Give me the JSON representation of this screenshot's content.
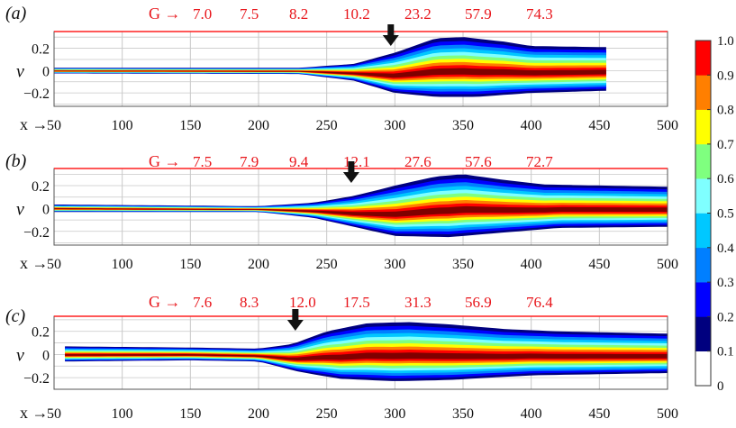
{
  "colors": {
    "g_text": "#e8151b",
    "g_line": "#ff2020",
    "grid": "#c8c8c8",
    "frame": "#555555",
    "arrow": "#111111",
    "text": "#111111"
  },
  "colormap": [
    "#ffffff",
    "#00007f",
    "#0000ff",
    "#007fff",
    "#00c8ff",
    "#7fffff",
    "#7fff7f",
    "#ffff00",
    "#ff7f00",
    "#ff0000",
    "#7f0000"
  ],
  "chart_data": [
    {
      "type": "heatmap",
      "panel_label": "(a)",
      "g_prefix": "G →",
      "g_values": [
        "7.0",
        "7.5",
        "8.2",
        "10.2",
        "23.2",
        "57.9",
        "74.3"
      ],
      "g_positions_x": [
        132,
        184,
        235,
        300,
        365,
        430,
        495
      ],
      "x_prefix": "x →",
      "x_ticks": [
        "50",
        "100",
        "150",
        "200",
        "250",
        "300",
        "350",
        "400",
        "450",
        "500"
      ],
      "xlim": [
        50,
        500
      ],
      "ylabel": "v",
      "y_ticks": [
        "0.2",
        "0",
        "−0.2"
      ],
      "y_tick_values": [
        0.2,
        0,
        -0.2
      ],
      "ylim": [
        -0.32,
        0.35
      ],
      "data_x_end": 455,
      "arrow_x": 297,
      "upper_boundary": [
        [
          50,
          0.025
        ],
        [
          230,
          0.025
        ],
        [
          270,
          0.06
        ],
        [
          300,
          0.16
        ],
        [
          330,
          0.29
        ],
        [
          350,
          0.3
        ],
        [
          380,
          0.26
        ],
        [
          400,
          0.22
        ],
        [
          455,
          0.21
        ]
      ],
      "lower_boundary": [
        [
          50,
          -0.025
        ],
        [
          230,
          -0.03
        ],
        [
          270,
          -0.09
        ],
        [
          300,
          -0.2
        ],
        [
          330,
          -0.235
        ],
        [
          360,
          -0.235
        ],
        [
          400,
          -0.2
        ],
        [
          455,
          -0.18
        ]
      ]
    },
    {
      "type": "heatmap",
      "panel_label": "(b)",
      "g_prefix": "G →",
      "g_values": [
        "7.5",
        "7.9",
        "9.4",
        "12.1",
        "27.6",
        "57.6",
        "72.7"
      ],
      "g_positions_x": [
        132,
        184,
        235,
        300,
        365,
        430,
        495
      ],
      "x_prefix": "x →",
      "x_ticks": [
        "50",
        "100",
        "150",
        "200",
        "250",
        "300",
        "350",
        "400",
        "450",
        "500"
      ],
      "xlim": [
        50,
        500
      ],
      "ylabel": "v",
      "y_ticks": [
        "0.2",
        "0",
        "−0.2"
      ],
      "y_tick_values": [
        0.2,
        0,
        -0.2
      ],
      "ylim": [
        -0.32,
        0.35
      ],
      "data_x_end": 500,
      "arrow_x": 268,
      "upper_boundary": [
        [
          50,
          0.035
        ],
        [
          200,
          0.02
        ],
        [
          240,
          0.05
        ],
        [
          270,
          0.11
        ],
        [
          300,
          0.2
        ],
        [
          330,
          0.28
        ],
        [
          350,
          0.3
        ],
        [
          380,
          0.25
        ],
        [
          410,
          0.21
        ],
        [
          500,
          0.19
        ]
      ],
      "lower_boundary": [
        [
          50,
          -0.03
        ],
        [
          200,
          -0.03
        ],
        [
          240,
          -0.08
        ],
        [
          270,
          -0.16
        ],
        [
          300,
          -0.24
        ],
        [
          340,
          -0.25
        ],
        [
          380,
          -0.21
        ],
        [
          420,
          -0.17
        ],
        [
          500,
          -0.16
        ]
      ]
    },
    {
      "type": "heatmap",
      "panel_label": "(c)",
      "g_prefix": "G →",
      "g_values": [
        "7.6",
        "8.3",
        "12.0",
        "17.5",
        "31.3",
        "56.9",
        "76.4"
      ],
      "g_positions_x": [
        132,
        184,
        235,
        300,
        365,
        430,
        495
      ],
      "x_prefix": "x →",
      "x_ticks": [
        "50",
        "100",
        "150",
        "200",
        "250",
        "300",
        "350",
        "400",
        "450",
        "500"
      ],
      "xlim": [
        50,
        500
      ],
      "ylabel": "v",
      "y_ticks": [
        "0.2",
        "0",
        "−0.2"
      ],
      "y_tick_values": [
        0.2,
        0,
        -0.2
      ],
      "ylim": [
        -0.3,
        0.33
      ],
      "data_x_start": 58,
      "data_x_end": 500,
      "arrow_x": 227,
      "upper_boundary": [
        [
          58,
          0.07
        ],
        [
          150,
          0.06
        ],
        [
          200,
          0.05
        ],
        [
          225,
          0.09
        ],
        [
          250,
          0.2
        ],
        [
          280,
          0.27
        ],
        [
          310,
          0.28
        ],
        [
          340,
          0.26
        ],
        [
          380,
          0.22
        ],
        [
          420,
          0.2
        ],
        [
          500,
          0.18
        ]
      ],
      "lower_boundary": [
        [
          58,
          -0.06
        ],
        [
          150,
          -0.05
        ],
        [
          200,
          -0.06
        ],
        [
          230,
          -0.15
        ],
        [
          260,
          -0.21
        ],
        [
          300,
          -0.23
        ],
        [
          340,
          -0.22
        ],
        [
          400,
          -0.18
        ],
        [
          500,
          -0.16
        ]
      ]
    }
  ],
  "colorbar": {
    "ticks": [
      "1.0",
      "0.9",
      "0.8",
      "0.7",
      "0.6",
      "0.5",
      "0.4",
      "0.3",
      "0.2",
      "0.1",
      "0"
    ],
    "tick_values": [
      1.0,
      0.9,
      0.8,
      0.7,
      0.6,
      0.5,
      0.4,
      0.3,
      0.2,
      0.1,
      0
    ],
    "range": [
      0,
      1
    ]
  }
}
